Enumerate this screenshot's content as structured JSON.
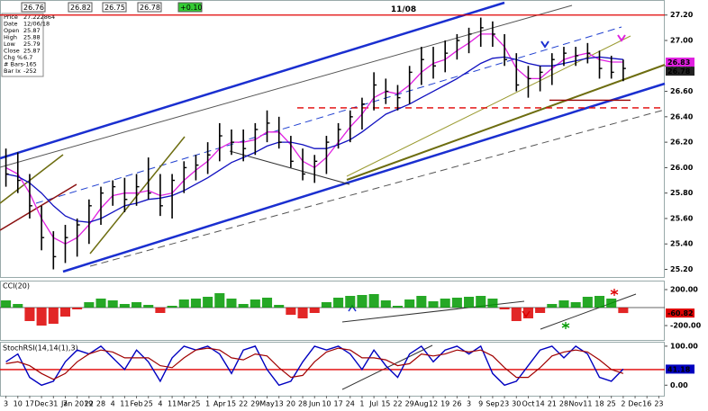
{
  "header": {
    "quote": [
      "26.76",
      "26.82",
      "26.75",
      "26.78",
      "+0.10"
    ]
  },
  "info_box": [
    [
      "Price",
      "27.222864"
    ],
    [
      "Date",
      "12/06/18"
    ],
    [
      "Open",
      "25.87"
    ],
    [
      "High",
      "25.88"
    ],
    [
      "Low",
      "25.79"
    ],
    [
      "Close",
      "25.87"
    ],
    [
      "Chg %",
      "6.7"
    ],
    [
      "# Bars",
      "-165"
    ],
    [
      "Bar Ix",
      "-252"
    ]
  ],
  "chart_data": [
    {
      "type": "ohlc",
      "categories": [
        "3",
        "10",
        "17",
        "Dec",
        "31",
        "7",
        "Jan 2019",
        "22",
        "28",
        "4",
        "11",
        "Feb",
        "25",
        "4",
        "11",
        "Mar",
        "25",
        "1",
        "Apr",
        "15",
        "22",
        "29",
        "May",
        "13",
        "20",
        "28",
        "Jun",
        "10",
        "17",
        "24",
        "1",
        "Jul",
        "15",
        "22",
        "29",
        "Aug",
        "12",
        "19",
        "26",
        "3",
        "9",
        "Sep",
        "23",
        "30",
        "Oct",
        "14",
        "21",
        "28",
        "Nov",
        "11",
        "18",
        "25",
        "2",
        "Dec",
        "16",
        "23"
      ],
      "high": [
        26.15,
        26.12,
        25.95,
        25.7,
        25.5,
        25.55,
        25.6,
        25.75,
        25.85,
        25.9,
        25.92,
        25.95,
        26.08,
        25.95,
        25.95,
        26.05,
        26.1,
        26.2,
        26.35,
        26.3,
        26.3,
        26.35,
        26.45,
        26.4,
        26.25,
        26.15,
        26.1,
        26.25,
        26.35,
        26.45,
        26.55,
        26.75,
        26.7,
        26.65,
        26.8,
        26.95,
        26.95,
        27.0,
        27.05,
        27.1,
        27.18,
        27.15,
        27.05,
        26.9,
        26.8,
        26.8,
        26.9,
        26.95,
        26.95,
        26.98,
        26.92,
        26.88,
        26.85,
        null,
        null,
        null
      ],
      "low": [
        25.85,
        25.8,
        25.6,
        25.35,
        25.2,
        25.25,
        25.3,
        25.4,
        25.55,
        25.7,
        25.65,
        25.7,
        25.75,
        25.62,
        25.6,
        25.8,
        25.9,
        25.95,
        26.05,
        26.1,
        26.05,
        26.1,
        26.2,
        26.15,
        26.0,
        25.9,
        25.88,
        25.95,
        26.15,
        26.2,
        26.3,
        26.45,
        26.5,
        26.45,
        26.5,
        26.65,
        26.7,
        26.75,
        26.85,
        26.9,
        26.95,
        26.95,
        26.8,
        26.6,
        26.55,
        26.6,
        26.65,
        26.8,
        26.8,
        26.82,
        26.7,
        26.7,
        26.68,
        null,
        null,
        null
      ],
      "close": [
        25.95,
        25.9,
        25.7,
        25.45,
        25.3,
        25.45,
        25.55,
        25.7,
        25.8,
        25.85,
        25.75,
        25.85,
        25.8,
        25.7,
        25.9,
        26.0,
        26.02,
        26.1,
        26.25,
        26.2,
        26.15,
        26.3,
        26.35,
        26.2,
        26.05,
        25.95,
        26.05,
        26.2,
        26.3,
        26.4,
        26.5,
        26.65,
        26.6,
        26.55,
        26.75,
        26.85,
        26.8,
        26.9,
        27.0,
        27.05,
        27.1,
        27.05,
        26.85,
        26.65,
        26.7,
        26.75,
        26.85,
        26.9,
        26.88,
        26.9,
        26.78,
        26.75,
        26.78,
        null,
        null,
        null
      ],
      "color": "#000000",
      "series": [
        {
          "color": "#e020e0",
          "values": [
            26.0,
            25.95,
            25.8,
            25.6,
            25.45,
            25.4,
            25.45,
            25.55,
            25.68,
            25.78,
            25.8,
            25.8,
            25.82,
            25.78,
            25.8,
            25.9,
            25.98,
            26.05,
            26.15,
            26.2,
            26.2,
            26.22,
            26.28,
            26.28,
            26.18,
            26.05,
            26.0,
            26.08,
            26.2,
            26.32,
            26.42,
            26.55,
            26.6,
            26.58,
            26.65,
            26.75,
            26.82,
            26.85,
            26.92,
            26.98,
            27.05,
            27.05,
            26.95,
            26.78,
            26.7,
            26.7,
            26.78,
            26.85,
            26.88,
            26.9,
            26.85,
            26.83,
            26.83,
            null,
            null,
            null
          ]
        },
        {
          "color": "#1010c0",
          "values": [
            25.95,
            25.93,
            25.88,
            25.8,
            25.7,
            25.62,
            25.58,
            25.57,
            25.6,
            25.65,
            25.7,
            25.72,
            25.75,
            25.76,
            25.78,
            25.82,
            25.87,
            25.92,
            25.98,
            26.04,
            26.08,
            26.12,
            26.17,
            26.2,
            26.2,
            26.18,
            26.15,
            26.15,
            26.18,
            26.22,
            26.28,
            26.35,
            26.42,
            26.46,
            26.5,
            26.55,
            26.6,
            26.65,
            26.7,
            26.76,
            26.82,
            26.86,
            26.87,
            26.85,
            26.82,
            26.8,
            26.8,
            26.82,
            26.84,
            26.86,
            26.87,
            26.86,
            26.85,
            null,
            null,
            null
          ]
        }
      ],
      "ylim": [
        25.14,
        27.29
      ],
      "yticks": [
        {
          "value": 25.2,
          "label": "25.20"
        },
        {
          "value": 25.4,
          "label": "25.40"
        },
        {
          "value": 25.6,
          "label": "25.60"
        },
        {
          "value": 25.8,
          "label": "25.80"
        },
        {
          "value": 26.0,
          "label": "26.00"
        },
        {
          "value": 26.2,
          "label": "26.20"
        },
        {
          "value": 26.4,
          "label": "26.40"
        },
        {
          "value": 26.6,
          "label": "26.60"
        },
        {
          "value": 26.8,
          "label": "26.80"
        },
        {
          "value": 27.0,
          "label": "27.00"
        },
        {
          "value": 27.2,
          "label": "27.20"
        }
      ],
      "hlines": [
        {
          "value": 27.2,
          "color": "#e00000",
          "label": "11/08"
        },
        {
          "value": 26.53,
          "color": "#990000"
        },
        {
          "value": 26.47,
          "color": "#e00000",
          "dash": true
        }
      ]
    },
    {
      "type": "bar",
      "title": "CCI(20)",
      "values": [
        80,
        40,
        -150,
        -200,
        -180,
        -100,
        -20,
        60,
        100,
        80,
        40,
        60,
        30,
        -60,
        20,
        90,
        100,
        120,
        160,
        100,
        40,
        90,
        110,
        30,
        -80,
        -120,
        -60,
        60,
        110,
        130,
        140,
        150,
        80,
        20,
        90,
        130,
        70,
        100,
        110,
        120,
        130,
        100,
        -20,
        -150,
        -120,
        -60,
        40,
        80,
        60,
        120,
        130,
        100,
        -60.82,
        null,
        null,
        null
      ],
      "colors": {
        "positive": "#009900",
        "negative": "#dd0000"
      },
      "ylim": [
        -360,
        300
      ],
      "yticks": [
        {
          "value": 200,
          "label": "200.00"
        },
        {
          "value": -200,
          "label": "-200.00"
        }
      ]
    },
    {
      "type": "line",
      "title": "StochRSI(14,14(1),3)",
      "series": [
        {
          "color": "#0000c0",
          "values": [
            60,
            80,
            20,
            0,
            10,
            60,
            90,
            80,
            100,
            70,
            40,
            90,
            60,
            10,
            70,
            100,
            90,
            100,
            80,
            30,
            90,
            100,
            40,
            0,
            10,
            60,
            100,
            90,
            100,
            80,
            40,
            90,
            50,
            20,
            80,
            100,
            60,
            90,
            100,
            80,
            100,
            30,
            0,
            10,
            50,
            90,
            100,
            70,
            100,
            80,
            20,
            10,
            41.18,
            null,
            null,
            null
          ]
        },
        {
          "color": "#a00000",
          "values": [
            55,
            60,
            50,
            30,
            15,
            30,
            60,
            80,
            90,
            85,
            70,
            70,
            70,
            50,
            45,
            70,
            90,
            95,
            90,
            70,
            65,
            80,
            75,
            45,
            20,
            25,
            60,
            85,
            95,
            90,
            70,
            70,
            65,
            50,
            55,
            80,
            75,
            80,
            90,
            85,
            90,
            75,
            45,
            20,
            20,
            45,
            75,
            85,
            90,
            85,
            65,
            40,
            30,
            null,
            null,
            null
          ]
        }
      ],
      "ylim": [
        -27,
        109
      ],
      "yticks": [
        {
          "value": 100,
          "label": "100.00"
        },
        {
          "value": 0,
          "label": "0.00"
        }
      ],
      "hlines": [
        {
          "value": 40,
          "color": "#e00000"
        }
      ]
    }
  ]
}
